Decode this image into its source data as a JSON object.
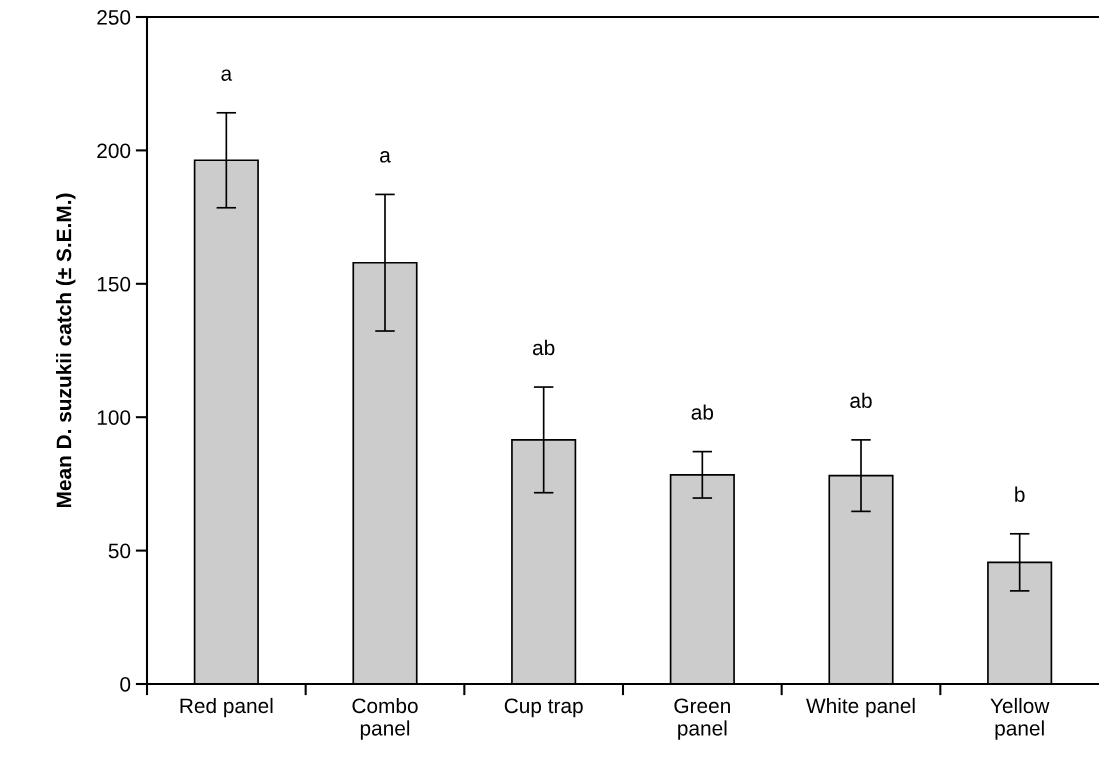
{
  "chart_data": {
    "type": "bar",
    "ylabel": "Mean D. suzukii catch (± S.E.M.)",
    "categories": [
      "Red panel",
      "Combo\npanel",
      "Cup trap",
      "Green\npanel",
      "White panel",
      "Yellow\npanel"
    ],
    "values": [
      196.3,
      157.9,
      91.5,
      78.4,
      78.1,
      45.6
    ],
    "errors": [
      17.8,
      25.6,
      19.8,
      8.7,
      13.4,
      10.7
    ],
    "color": "#cccccc",
    "ylim": [
      0,
      250
    ],
    "yticks": [
      0,
      50,
      100,
      150,
      200,
      250
    ],
    "grid": false,
    "annotations": [
      "a",
      "a",
      "ab",
      "ab",
      "ab",
      "b"
    ]
  }
}
